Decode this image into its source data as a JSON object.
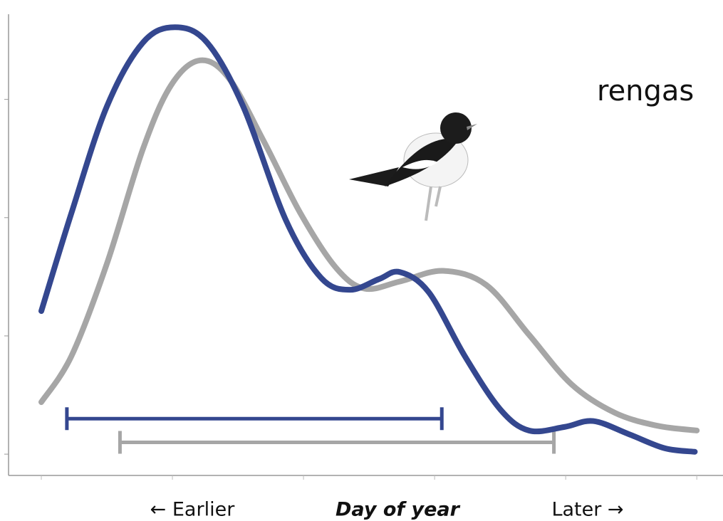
{
  "chart_data": {
    "type": "line",
    "xlabel": "Day of year",
    "left_note": "← Earlier",
    "right_note": "Later →",
    "annotation": "rengas",
    "xlim": [
      -0.5,
      10.4
    ],
    "ylim": [
      -0.18,
      3.72
    ],
    "xticks": [
      0,
      2,
      4,
      6,
      8,
      10
    ],
    "yticks": [
      0,
      1,
      2,
      3
    ],
    "series": [
      {
        "color": "#34478f",
        "x": [
          0,
          0.46,
          1.0,
          1.55,
          2.04,
          2.53,
          3.08,
          3.73,
          4.27,
          4.71,
          5.15,
          5.47,
          5.91,
          6.46,
          7.0,
          7.44,
          7.98,
          8.42,
          8.96,
          9.51,
          9.97
        ],
        "values": [
          1.21,
          2.04,
          2.94,
          3.48,
          3.61,
          3.48,
          2.94,
          1.98,
          1.49,
          1.39,
          1.48,
          1.54,
          1.37,
          0.83,
          0.38,
          0.2,
          0.23,
          0.28,
          0.17,
          0.05,
          0.02
        ],
        "range": [
          0.39,
          6.11
        ],
        "range_y": 0.3
      },
      {
        "color": "#a6a6a6",
        "x": [
          0,
          0.46,
          1.0,
          1.55,
          1.98,
          2.42,
          2.86,
          3.4,
          3.95,
          4.49,
          4.93,
          5.47,
          6.13,
          6.79,
          7.44,
          8.09,
          8.75,
          9.4,
          10.0
        ],
        "values": [
          0.44,
          0.83,
          1.61,
          2.58,
          3.12,
          3.33,
          3.18,
          2.64,
          2.04,
          1.58,
          1.4,
          1.46,
          1.55,
          1.43,
          1.01,
          0.59,
          0.35,
          0.24,
          0.2
        ],
        "range": [
          1.2,
          7.82
        ],
        "range_y": 0.1
      }
    ]
  }
}
